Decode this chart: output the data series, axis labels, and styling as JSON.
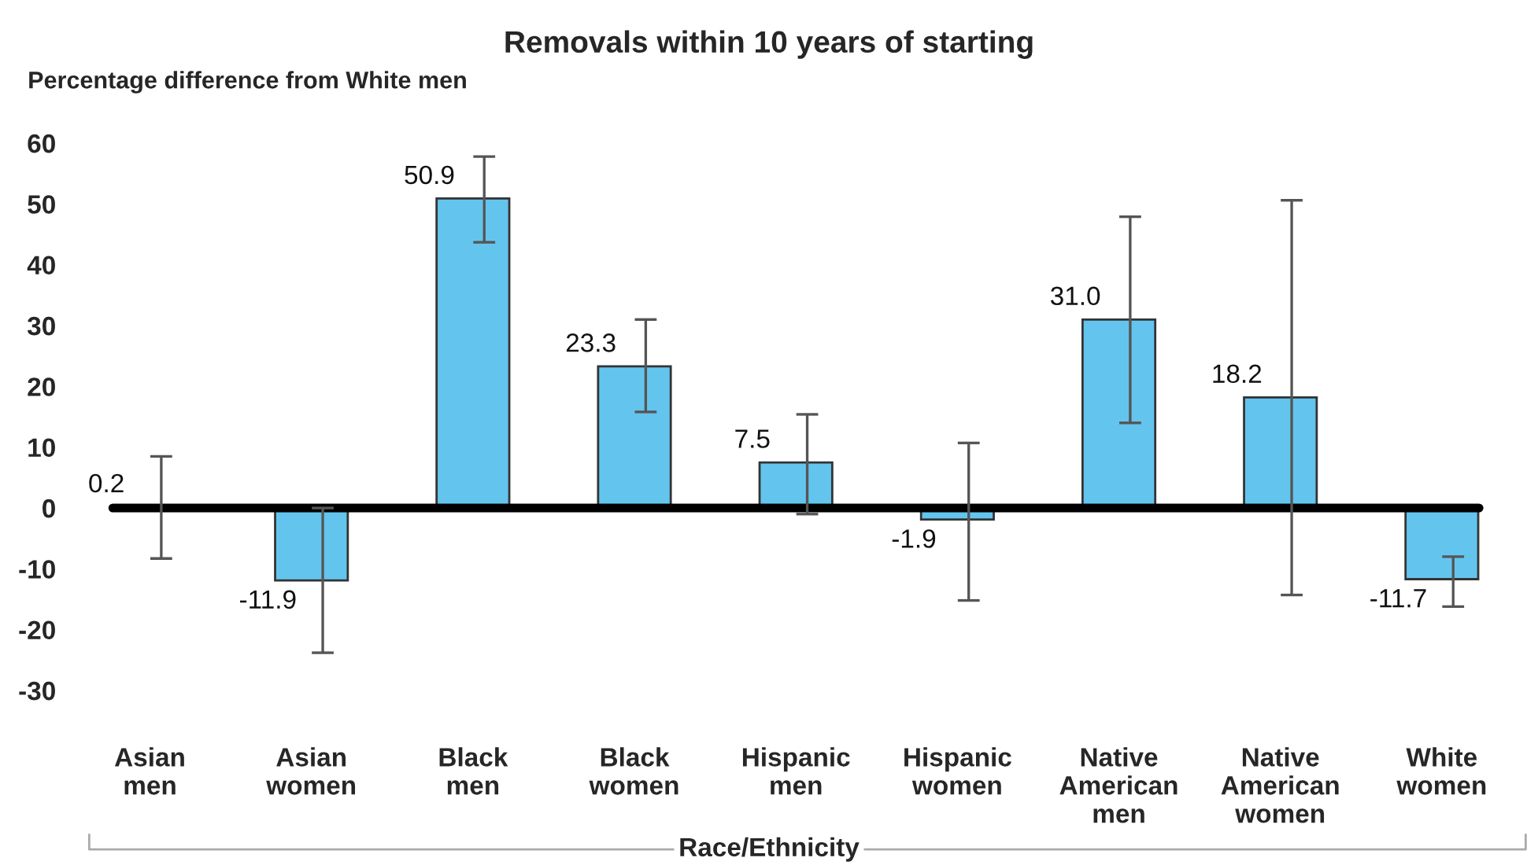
{
  "chart_data": {
    "type": "bar",
    "title": "Removals within 10 years of starting",
    "ylabel": "Percentage difference from White men",
    "xlabel": "Race/Ethnicity",
    "categories": [
      "Asian\nmen",
      "Asian\nwomen",
      "Black\nmen",
      "Black\nwomen",
      "Hispanic\nmen",
      "Hispanic\nwomen",
      "Native\nAmerican\nmen",
      "Native\nAmerican\nwomen",
      "White\nwomen"
    ],
    "values": [
      0.2,
      -11.9,
      50.9,
      23.3,
      7.5,
      -1.9,
      31.0,
      18.2,
      -11.7
    ],
    "errors": [
      [
        -8.3,
        8.5
      ],
      [
        -23.8,
        0.0
      ],
      [
        43.7,
        57.8
      ],
      [
        15.8,
        31.0
      ],
      [
        -1.0,
        15.4
      ],
      [
        -15.2,
        10.7
      ],
      [
        14.0,
        47.9
      ],
      [
        -14.3,
        50.6
      ],
      [
        -16.2,
        -8.0
      ]
    ],
    "color": "#63c5ee",
    "value_labels": [
      "0.2",
      "-11.9",
      "50.9",
      "23.3",
      "7.5",
      "-1.9",
      "31.0",
      "18.2",
      "-11.7"
    ],
    "ylim": [
      -30,
      60
    ],
    "yticks": [
      -30,
      -20,
      -10,
      0,
      10,
      20,
      30,
      40,
      50,
      60
    ],
    "ref_lines": [
      {
        "axis": "y",
        "value": 0,
        "color": "#000000"
      }
    ],
    "grid": false,
    "legend": false
  }
}
